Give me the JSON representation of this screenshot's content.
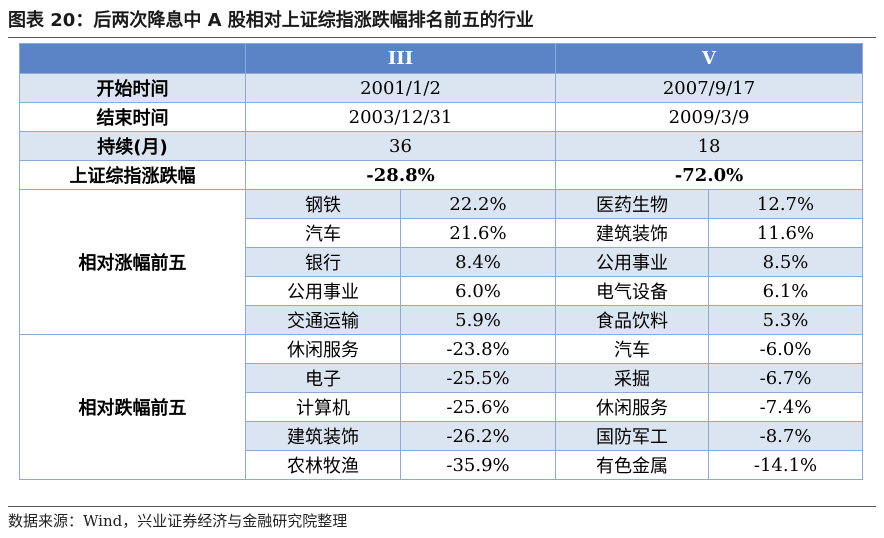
{
  "title": "图表 20：后两次降息中 A 股相对上证综指涨跌幅排名前五的行业",
  "headers": [
    "III",
    "V"
  ],
  "info_rows": [
    {
      "label": "开始时间",
      "values": [
        "2001/1/2",
        "2007/9/17"
      ]
    },
    {
      "label": "结束时间",
      "values": [
        "2003/12/31",
        "2009/3/9"
      ]
    },
    {
      "label": "持续(月)",
      "values": [
        "36",
        "18"
      ]
    },
    {
      "label": "上证综指涨跌幅",
      "values": [
        "-28.8%",
        "-72.0%"
      ]
    }
  ],
  "top5": {
    "label": "相对涨幅前五",
    "rows": [
      {
        "i3": "钢铁",
        "v3": "22.2%",
        "i5": "医药生物",
        "v5": "12.7%"
      },
      {
        "i3": "汽车",
        "v3": "21.6%",
        "i5": "建筑装饰",
        "v5": "11.6%"
      },
      {
        "i3": "银行",
        "v3": "8.4%",
        "i5": "公用事业",
        "v5": "8.5%"
      },
      {
        "i3": "公用事业",
        "v3": "6.0%",
        "i5": "电气设备",
        "v5": "6.1%"
      },
      {
        "i3": "交通运输",
        "v3": "5.9%",
        "i5": "食品饮料",
        "v5": "5.3%"
      }
    ]
  },
  "bottom5": {
    "label": "相对跌幅前五",
    "rows": [
      {
        "i3": "休闲服务",
        "v3": "-23.8%",
        "i5": "汽车",
        "v5": "-6.0%"
      },
      {
        "i3": "电子",
        "v3": "-25.5%",
        "i5": "采掘",
        "v5": "-6.7%"
      },
      {
        "i3": "计算机",
        "v3": "-25.6%",
        "i5": "休闲服务",
        "v5": "-7.4%"
      },
      {
        "i3": "建筑装饰",
        "v3": "-26.2%",
        "i5": "国防军工",
        "v5": "-8.7%"
      },
      {
        "i3": "农林牧渔",
        "v3": "-35.9%",
        "i5": "有色金属",
        "v5": "-14.1%"
      }
    ]
  },
  "source": "数据来源：Wind，兴业证券经济与金融研究院整理",
  "colors": {
    "header_bg": "#5b84c6",
    "band_bg": "#dbe5f1",
    "border": "#8aaad8"
  }
}
